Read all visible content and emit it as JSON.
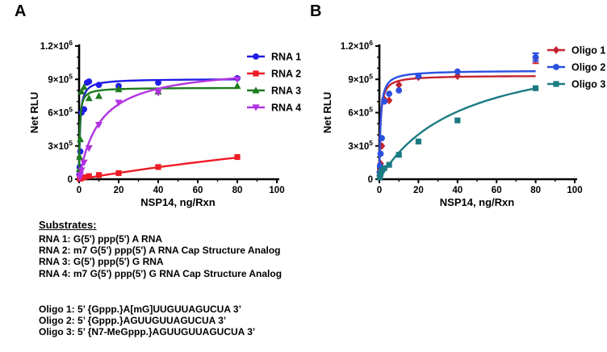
{
  "figure": {
    "background": "#ffffff"
  },
  "chart_data": [
    {
      "panel_label": "A",
      "type": "scatter",
      "title": "",
      "xlabel": "NSP14, ng/Rxn",
      "ylabel": "Net RLU",
      "xlim": [
        0,
        100
      ],
      "ylim": [
        0,
        1200000
      ],
      "x_ticks": [
        0,
        20,
        40,
        60,
        80,
        100
      ],
      "x_minor_step": 10,
      "y_minor_step": 100000,
      "y_ticks": [
        {
          "value": 0,
          "label": "0"
        },
        {
          "value": 300000,
          "label": "3×10⁵"
        },
        {
          "value": 600000,
          "label": "6×10⁵"
        },
        {
          "value": 900000,
          "label": "9×10⁵"
        },
        {
          "value": 1200000,
          "label": "1.2×10⁶"
        }
      ],
      "grid": false,
      "legend_position": "right-top",
      "series": [
        {
          "name": "RNA 1",
          "color": "#1f1ce6",
          "marker": "circle",
          "x": [
            0.16,
            0.31,
            0.63,
            1.25,
            2.5,
            4,
            5,
            10,
            20,
            40,
            80
          ],
          "y": [
            40000,
            110000,
            250000,
            600000,
            630000,
            870000,
            880000,
            850000,
            840000,
            870000,
            910000
          ],
          "fit": {
            "ymax": 905000,
            "k": 0.5
          }
        },
        {
          "name": "RNA 2",
          "color": "#ee1c25",
          "marker": "square",
          "x": [
            0.31,
            0.63,
            1.25,
            2.5,
            5,
            10,
            20,
            40,
            80
          ],
          "y": [
            5000,
            8000,
            12000,
            18000,
            28000,
            38000,
            55000,
            110000,
            200000
          ],
          "fit": {
            "ymax": 1000000,
            "k": 330
          }
        },
        {
          "name": "RNA 3",
          "color": "#1e7b1e",
          "marker": "triangle-up",
          "x": [
            0.16,
            0.31,
            0.63,
            1.25,
            2.5,
            5,
            10,
            20,
            40,
            80
          ],
          "y": [
            90000,
            200000,
            360000,
            790000,
            830000,
            730000,
            750000,
            810000,
            790000,
            840000
          ],
          "fit": {
            "ymax": 825000,
            "k": 0.33
          }
        },
        {
          "name": "RNA 4",
          "color": "#b133e0",
          "marker": "triangle-down",
          "x": [
            0.31,
            0.63,
            1.25,
            2.5,
            5,
            10,
            20,
            40,
            80
          ],
          "y": [
            15000,
            40000,
            80000,
            150000,
            280000,
            490000,
            690000,
            780000,
            900000
          ],
          "fit": {
            "ymax": 1030000,
            "k": 10.5
          }
        }
      ]
    },
    {
      "panel_label": "B",
      "type": "scatter",
      "title": "",
      "xlabel": "NSP14, ng/Rxn",
      "ylabel": "Net RLU",
      "xlim": [
        0,
        100
      ],
      "ylim": [
        0,
        1200000
      ],
      "x_ticks": [
        0,
        20,
        40,
        60,
        80,
        100
      ],
      "x_minor_step": 10,
      "y_minor_step": 100000,
      "y_ticks": [
        {
          "value": 0,
          "label": "0"
        },
        {
          "value": 300000,
          "label": "3×10⁵"
        },
        {
          "value": 600000,
          "label": "6×10⁵"
        },
        {
          "value": 900000,
          "label": "9×10⁵"
        },
        {
          "value": 1200000,
          "label": "1.2×10⁶"
        }
      ],
      "grid": false,
      "legend_position": "right-top",
      "series": [
        {
          "name": "Oligo 1",
          "color": "#c42430",
          "marker": "diamond",
          "x": [
            0.16,
            0.31,
            0.63,
            1.25,
            2.5,
            5,
            10,
            20,
            40,
            80
          ],
          "y": [
            35000,
            80000,
            140000,
            300000,
            720000,
            710000,
            850000,
            920000,
            930000,
            1090000
          ],
          "fit": {
            "ymax": 935000,
            "k": 0.55
          },
          "errors": [
            {
              "x": 80,
              "y": 1090000,
              "e": 45000
            }
          ]
        },
        {
          "name": "Oligo 2",
          "color": "#2b50e0",
          "marker": "circle",
          "x": [
            0.16,
            0.31,
            0.63,
            1.25,
            2.5,
            5,
            10,
            20,
            40,
            80
          ],
          "y": [
            60000,
            120000,
            230000,
            370000,
            700000,
            770000,
            800000,
            930000,
            970000,
            1100000
          ],
          "fit": {
            "ymax": 980000,
            "k": 0.6
          },
          "errors": [
            {
              "x": 80,
              "y": 1100000,
              "e": 35000
            }
          ]
        },
        {
          "name": "Oligo 3",
          "color": "#1b7b83",
          "marker": "square",
          "x": [
            0.16,
            0.31,
            0.63,
            1.25,
            2.5,
            5,
            10,
            20,
            40,
            80
          ],
          "y": [
            15000,
            30000,
            50000,
            80000,
            100000,
            130000,
            220000,
            340000,
            530000,
            820000
          ],
          "fit": {
            "ymax": 1250000,
            "k": 42
          }
        }
      ]
    }
  ],
  "substrates": {
    "title": "Substrates:",
    "groups": [
      {
        "lines": [
          "RNA 1: G(5') ppp(5') A RNA",
          "RNA 2: m7 G(5') ppp(5') A RNA Cap Structure Analog",
          "RNA 3: G(5') ppp(5') G RNA",
          "RNA 4: m7 G(5') ppp(5') G RNA Cap Structure Analog"
        ]
      },
      {
        "lines": [
          "Oligo 1: 5’ {Gppp.}A[mG]UUGUUAGUCUA 3’",
          "Oligo 2: 5’ {Gppp.}AGUUGUUAGUCUA 3’",
          "Oligo 3: 5’ {N7-MeGppp.}AGUUGUUAGUCUA 3’"
        ]
      }
    ]
  }
}
